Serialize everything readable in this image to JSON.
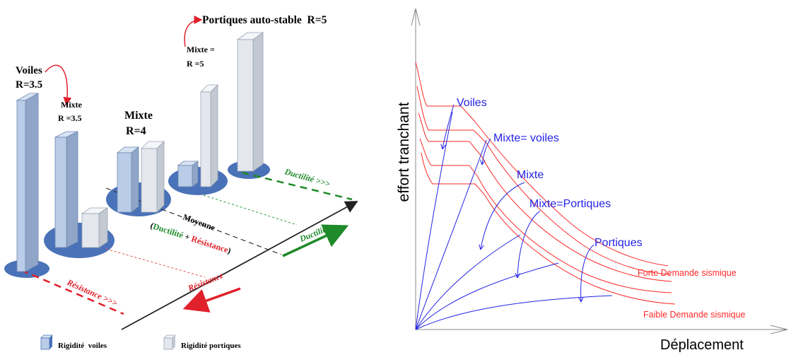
{
  "left_panel": {
    "voiles_label": "Voiles",
    "voiles_r": "R=3.5",
    "mixte1_label": "Mixte",
    "mixte1_r": "R =3.5",
    "mixte2_label": "Mixte",
    "mixte2_r": "R=4",
    "mixte3_label": "Mixte =",
    "mixte3_r": "R =5",
    "portiques_label": "Portiques auto-stable  R=5",
    "ductilite_top": "Ductilité >>>",
    "ductilite_axis": "Ductilité",
    "moyenne": "Moyenne",
    "moyenne_paren_open": "(",
    "moyenne_ductilite": "Ductilité",
    "moyenne_plus": " + ",
    "moyenne_resistance": "Résistance",
    "moyenne_paren_close": ")",
    "resistance_axis": "Résistance",
    "resistance_bottom": "Résistance >>>",
    "legend_voiles": "Rigidité  voiles",
    "legend_portiques": "Rigidité portiques"
  },
  "right_panel": {
    "y_axis_label": "effort tranchant",
    "x_axis_label": "Déplacement",
    "curve_labels": {
      "voiles": "Voiles",
      "mixte_voiles": "Mixte= voiles",
      "mixte": "Mixte",
      "mixte_portiques": "Mixte=Portiques",
      "portiques": "Portiques"
    },
    "demand_labels": {
      "forte": "Forte Demande sismique",
      "faible": "Faible Demande sismique"
    }
  },
  "colors": {
    "wall_blue": "#b9cde8",
    "portique_grey": "#e4e8ee",
    "base_disc": "#4a72b8",
    "capacity_blue": "#2323e6",
    "demand_red": "#ff2a2a",
    "ductility_green": "#1f8a2a",
    "resistance_red": "#e0202a"
  }
}
